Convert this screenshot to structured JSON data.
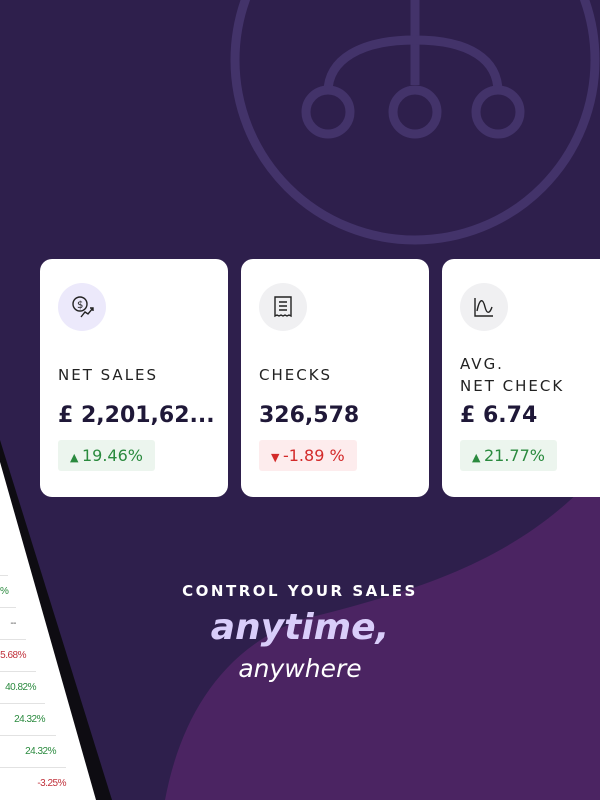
{
  "colors": {
    "background": "#2e1f4c",
    "blob": "#4b2462",
    "positive": "#2a8a3e",
    "negative": "#d32a2a",
    "tagline_accent": "#d9cdfa"
  },
  "cards": [
    {
      "icon": "money-trend-icon",
      "label": "NET SALES",
      "value": "£ 2,201,62...",
      "change": "19.46%",
      "direction": "up"
    },
    {
      "icon": "receipt-icon",
      "label": "CHECKS",
      "value": "326,578",
      "change": "-1.89 %",
      "direction": "down"
    },
    {
      "icon": "wave-chart-icon",
      "label": "AVG.\nNET CHECK",
      "value": "£ 6.74",
      "change": "21.77%",
      "direction": "up"
    }
  ],
  "tablet_rows": [
    "%",
    "--",
    "5.68%",
    "40.82%",
    "24.32%",
    "24.32%",
    "-3.25%"
  ],
  "tagline": {
    "line1": "CONTROL YOUR SALES",
    "line2": "anytime,",
    "line3": "anywhere"
  }
}
